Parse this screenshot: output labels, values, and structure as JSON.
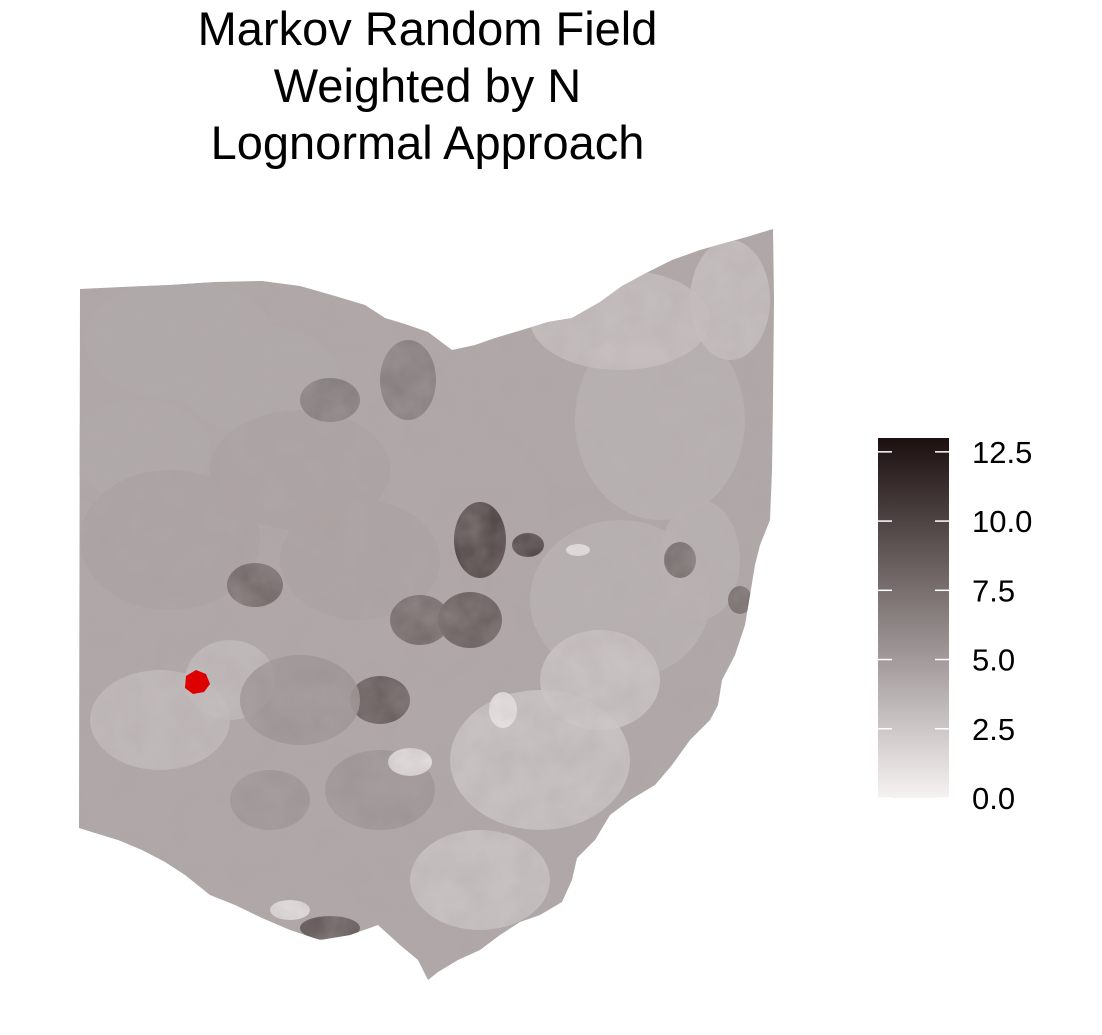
{
  "title_lines": [
    "Markov Random Field",
    "Weighted by N",
    "Lognormal Approach"
  ],
  "map": {
    "region": "Ohio",
    "fill_scale": {
      "low": "#f7f2f2",
      "high": "#1c0f0f",
      "min": 0.0,
      "max": 13.0
    },
    "highlight_color": "#dd0000",
    "regions": [
      {
        "name": "northwest",
        "value": 4.2
      },
      {
        "name": "west-central",
        "value": 4.6
      },
      {
        "name": "north-central-dark",
        "value": 6.9
      },
      {
        "name": "central-dark",
        "value": 9.0
      },
      {
        "name": "central-east-dark",
        "value": 10.5
      },
      {
        "name": "columbus-area",
        "value": 8.2
      },
      {
        "name": "east",
        "value": 3.6
      },
      {
        "name": "northeast",
        "value": 2.8
      },
      {
        "name": "southwest",
        "value": 3.1
      },
      {
        "name": "south-central",
        "value": 5.4
      },
      {
        "name": "southeast",
        "value": 2.6
      },
      {
        "name": "south-tip-dark",
        "value": 9.2
      },
      {
        "name": "dayton-dark",
        "value": 8.0
      },
      {
        "name": "light-pocket",
        "value": 0.8
      }
    ]
  },
  "legend": {
    "ticks": [
      {
        "value": 12.5,
        "label": "12.5"
      },
      {
        "value": 10.0,
        "label": "10.0"
      },
      {
        "value": 7.5,
        "label": "7.5"
      },
      {
        "value": 5.0,
        "label": "5.0"
      },
      {
        "value": 2.5,
        "label": "2.5"
      },
      {
        "value": 0.0,
        "label": "0.0"
      }
    ],
    "min": 0.0,
    "max": 13.0
  }
}
